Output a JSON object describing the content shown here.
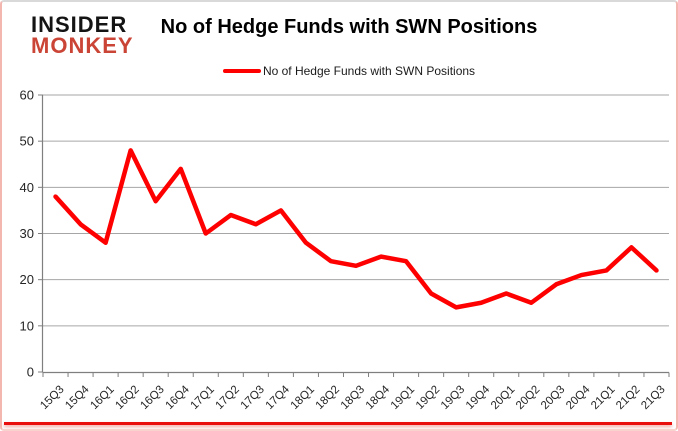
{
  "header": {
    "logo_line1": "INSIDER",
    "logo_line2": "MONKEY",
    "title": "No of Hedge Funds with SWN Positions",
    "legend_label": "No of Hedge Funds with SWN Positions"
  },
  "colors": {
    "line": "#fe0000",
    "logo_red": "#cb4537",
    "gridline": "#a6a6a6",
    "axis": "#7f7f7f",
    "tick_label": "#262626",
    "bottom_bar": "#e90f0f",
    "border_pink": "#f3b7b0"
  },
  "chart_data": {
    "type": "line",
    "title": "No of Hedge Funds with SWN Positions",
    "categories": [
      "15Q3",
      "15Q4",
      "16Q1",
      "16Q2",
      "16Q3",
      "16Q4",
      "17Q1",
      "17Q2",
      "17Q3",
      "17Q4",
      "18Q1",
      "18Q2",
      "18Q3",
      "18Q4",
      "19Q1",
      "19Q2",
      "19Q3",
      "19Q4",
      "20Q1",
      "20Q2",
      "20Q3",
      "20Q4",
      "21Q1",
      "21Q2",
      "21Q3"
    ],
    "series": [
      {
        "name": "No of Hedge Funds with SWN Positions",
        "values": [
          38,
          32,
          28,
          48,
          37,
          44,
          30,
          34,
          32,
          35,
          28,
          24,
          23,
          25,
          24,
          17,
          14,
          15,
          17,
          15,
          19,
          21,
          22,
          27,
          22
        ]
      }
    ],
    "ylabel": "",
    "xlabel": "",
    "ylim": [
      0,
      60
    ],
    "yticks": [
      0,
      10,
      20,
      30,
      40,
      50,
      60
    ],
    "grid": true,
    "legend_position": "top"
  }
}
